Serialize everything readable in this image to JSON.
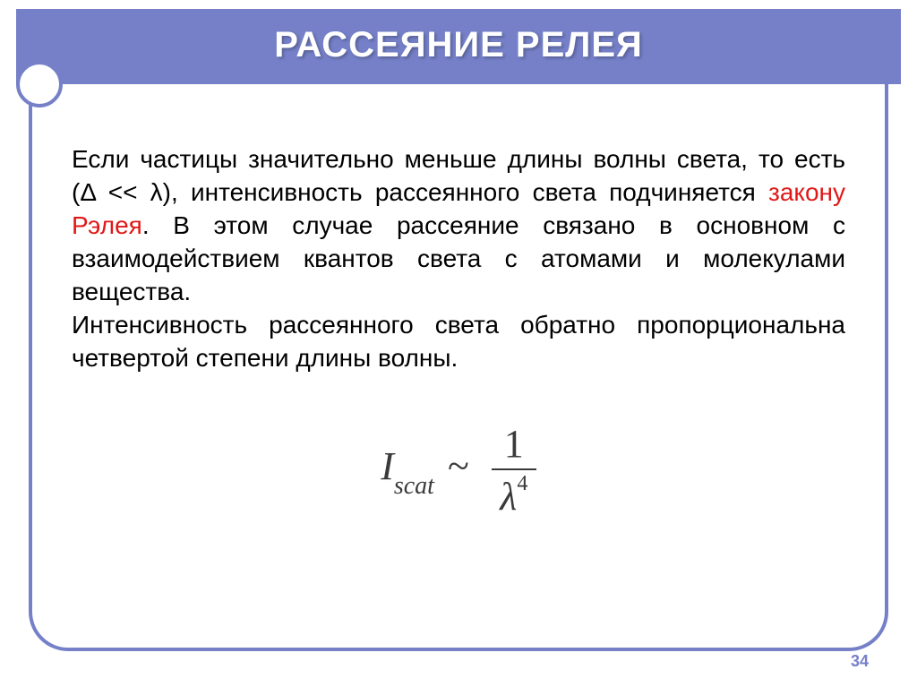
{
  "colors": {
    "theme": "#7580c8",
    "text": "#000000",
    "highlight": "#e01818",
    "formula": "#3a3a3a",
    "background": "#ffffff"
  },
  "title": "РАССЕЯНИЕ РЕЛЕЯ",
  "body": {
    "p1_pre": "Если частицы значительно меньше длины волны света, то есть (Δ << λ), интенсивность рассеянного света подчиняется ",
    "p1_hl": "закону Рэлея",
    "p1_post": ". В этом случае рассеяние связано в основном с взаимодействием квантов света с атомами и молекулами вещества.",
    "p2": "Интенсивность рассеянного света обратно пропорциональна четвертой степени длины волны."
  },
  "formula": {
    "lhs_base": "I",
    "lhs_sub": "scat",
    "relation": "~",
    "numerator": "1",
    "denom_base": "λ",
    "denom_exp": "4"
  },
  "page_number": "34"
}
